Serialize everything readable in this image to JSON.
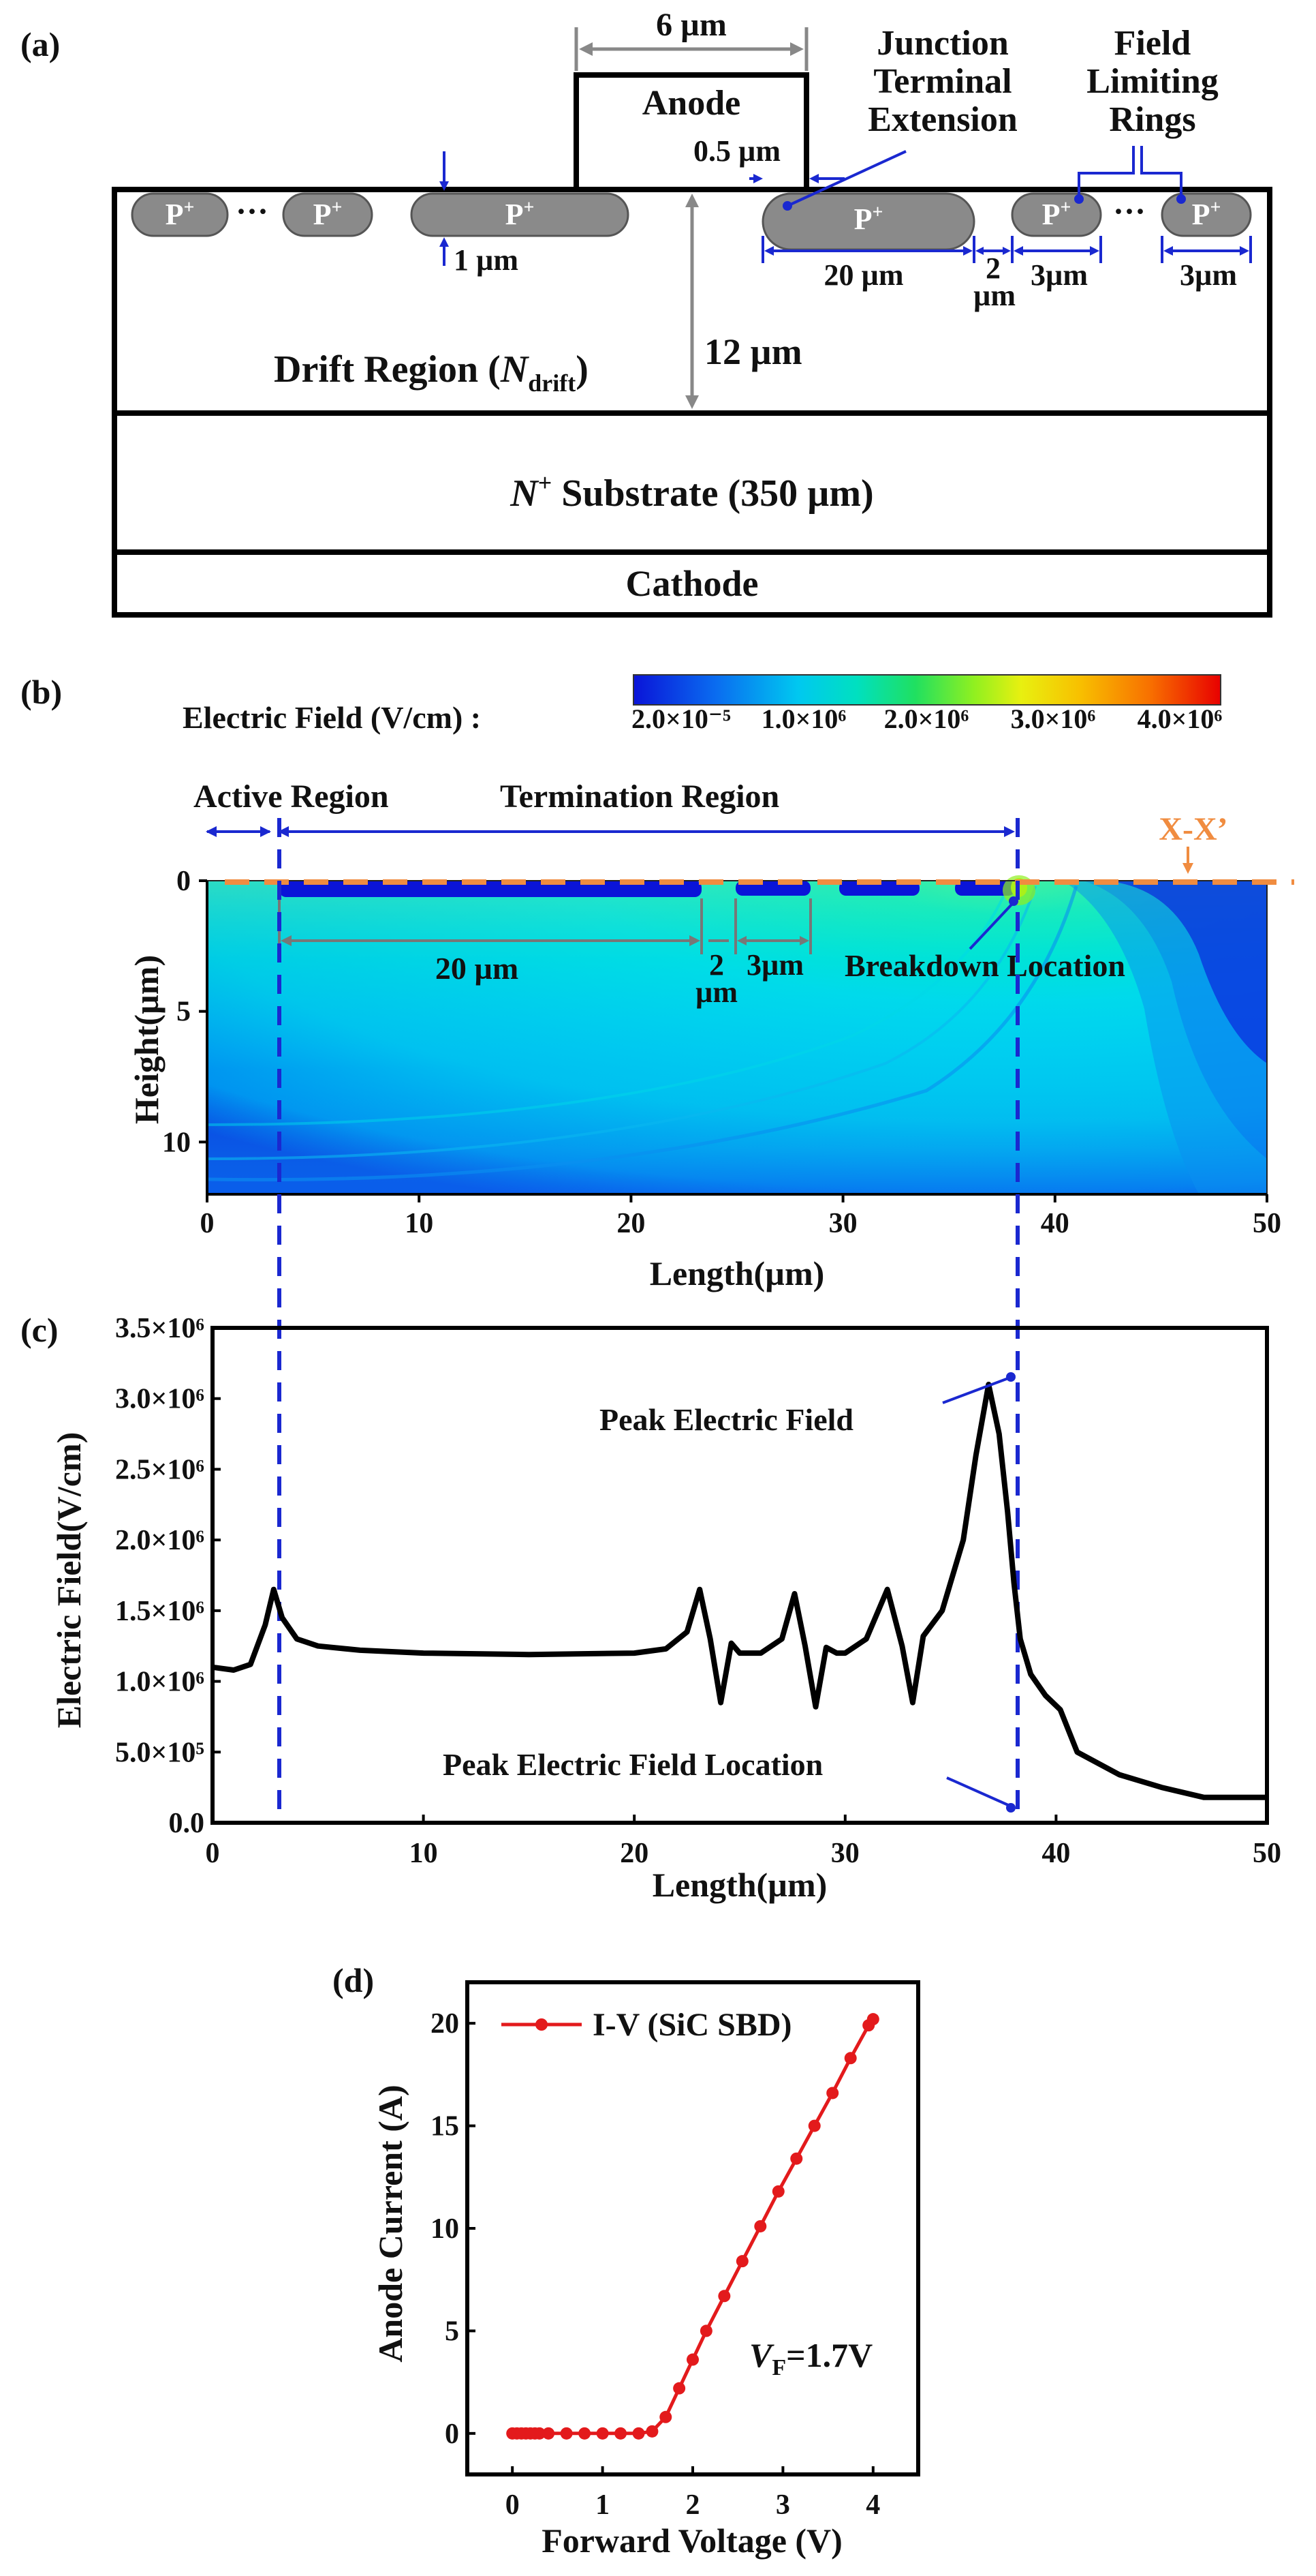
{
  "panel_a": {
    "label": "(a)",
    "anode_width": "6 µm",
    "anode": "Anode",
    "jte_line1": "Junction",
    "jte_line2": "Terminal",
    "jte_line3": "Extension",
    "flr_line1": "Field",
    "flr_line2": "Limiting",
    "flr_line3": "Rings",
    "overlap": "0.5 µm",
    "depth": "1 µm",
    "jte_width": "20 µm",
    "gap_line1": "2",
    "gap_line2": "µm",
    "ring_width_1": "3µm",
    "ring_width_2": "3µm",
    "ellipsis": "···",
    "p_plus": "P",
    "plus": "+",
    "drift_prefix": "Drift Region (",
    "drift_n": "N",
    "drift_sub": "drift",
    "drift_suffix": ")",
    "drift_thickness": "12 µm",
    "substrate_n": "N",
    "substrate_plus": "+",
    "substrate_text": " Substrate (350 µm)",
    "cathode": "Cathode"
  },
  "panel_b": {
    "label": "(b)",
    "colorbar_title": "Electric Field (V/cm) :",
    "colorbar_ticks": [
      "2.0×10⁻⁵",
      "1.0×10⁶",
      "2.0×10⁶",
      "3.0×10⁶",
      "4.0×10⁶"
    ],
    "colorbar_colors": [
      "#0a14d8",
      "#0a6cf0",
      "#00c8f0",
      "#00e0c0",
      "#20e060",
      "#90f020",
      "#e8f010",
      "#f8c000",
      "#f87000",
      "#f02000",
      "#e80000"
    ],
    "active_region": "Active Region",
    "termination_region": "Termination Region",
    "cut_label": "X-X’",
    "dim_20": "20 µm",
    "dim_2_line1": "2",
    "dim_2_line2": "µm",
    "dim_3": "3µm",
    "breakdown": "Breakdown Location",
    "xlabel": "Length(µm)",
    "ylabel": "Height(µm)",
    "xticks": [
      "0",
      "10",
      "20",
      "30",
      "40",
      "50"
    ],
    "yticks": [
      "0",
      "5",
      "10"
    ]
  },
  "panel_c": {
    "label": "(c)",
    "peak_label": "Peak Electric Field",
    "peak_location_label": "Peak Electric Field Location"
  },
  "panel_d": {
    "label": "(d)",
    "vf_v": "V",
    "vf_sub": "F",
    "vf_value": "=1.7V"
  },
  "chart_data": [
    {
      "type": "line",
      "panel": "(c)",
      "title": "",
      "xlabel": "Length(µm)",
      "ylabel": "Electric Field(V/cm)",
      "xlim": [
        0,
        50
      ],
      "ylim": [
        0,
        3500000
      ],
      "xticks": [
        "0",
        "10",
        "20",
        "30",
        "40",
        "50"
      ],
      "yticks": [
        "0.0",
        "5.0×10⁵",
        "1.0×10⁶",
        "1.5×10⁶",
        "2.0×10⁶",
        "2.5×10⁶",
        "3.0×10⁶",
        "3.5×10⁶"
      ],
      "series": [
        {
          "name": "Electric Field",
          "color": "#000000",
          "x": [
            0,
            1,
            1.8,
            2.5,
            2.9,
            3.3,
            4,
            5,
            7,
            10,
            15,
            20,
            21.5,
            22.5,
            23.1,
            23.6,
            24.1,
            24.6,
            25,
            26,
            27,
            27.6,
            28.1,
            28.6,
            29.1,
            29.6,
            30,
            31,
            32,
            32.7,
            33.2,
            33.7,
            34.1,
            34.6,
            35,
            35.6,
            36.2,
            36.8,
            37.3,
            37.7,
            38,
            38.3,
            38.8,
            39.5,
            40.2,
            41,
            43,
            45,
            47,
            50
          ],
          "y": [
            1100000,
            1080000,
            1120000,
            1400000,
            1650000,
            1450000,
            1300000,
            1250000,
            1220000,
            1200000,
            1190000,
            1200000,
            1230000,
            1350000,
            1650000,
            1300000,
            850000,
            1270000,
            1200000,
            1200000,
            1300000,
            1620000,
            1250000,
            820000,
            1240000,
            1200000,
            1200000,
            1300000,
            1650000,
            1250000,
            850000,
            1320000,
            1400000,
            1500000,
            1700000,
            2000000,
            2600000,
            3100000,
            2750000,
            2200000,
            1700000,
            1300000,
            1050000,
            900000,
            800000,
            500000,
            340000,
            250000,
            180000,
            180000
          ]
        }
      ]
    },
    {
      "type": "line",
      "panel": "(d)",
      "title": "",
      "xlabel": "Forward Voltage (V)",
      "ylabel": "Anode Current (A)",
      "xlim": [
        -0.5,
        4.5
      ],
      "ylim": [
        -2,
        22
      ],
      "xticks": [
        "0",
        "1",
        "2",
        "3",
        "4"
      ],
      "yticks": [
        "0",
        "5",
        "10",
        "15",
        "20"
      ],
      "legend": "top-left",
      "series": [
        {
          "name": "I-V (SiC SBD)",
          "color": "#e31a1c",
          "x": [
            0,
            0.05,
            0.1,
            0.15,
            0.2,
            0.25,
            0.3,
            0.4,
            0.6,
            0.8,
            1.0,
            1.2,
            1.4,
            1.55,
            1.7,
            1.85,
            2.0,
            2.15,
            2.35,
            2.55,
            2.75,
            2.95,
            3.15,
            3.35,
            3.55,
            3.75,
            3.95,
            4.0
          ],
          "y": [
            0,
            0,
            0,
            0,
            0,
            0,
            0,
            0,
            0,
            0,
            0,
            0,
            0,
            0.1,
            0.8,
            2.2,
            3.6,
            5.0,
            6.7,
            8.4,
            10.1,
            11.8,
            13.4,
            15.0,
            16.6,
            18.3,
            19.9,
            20.2
          ]
        }
      ]
    }
  ]
}
